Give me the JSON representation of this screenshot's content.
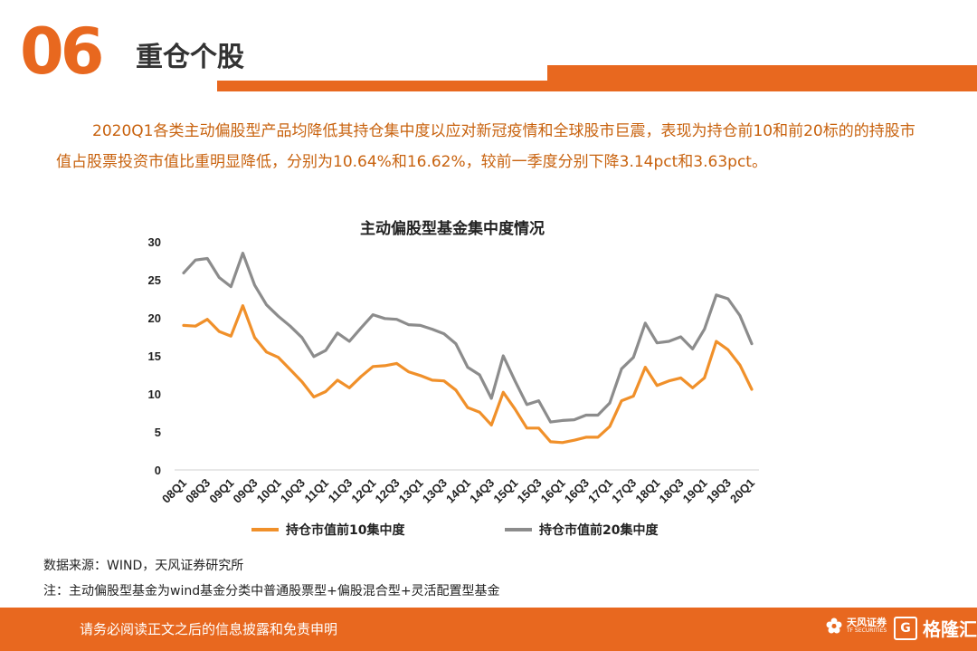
{
  "header": {
    "number": "06",
    "title": "重仓个股"
  },
  "paragraph": "2020Q1各类主动偏股型产品均降低其持仓集中度以应对新冠疫情和全球股市巨震，表现为持仓前10和前20标的的持股市值占股票投资市值比重明显降低，分别为10.64%和16.62%，较前一季度分别下降3.14pct和3.63pct。",
  "chart_data": {
    "type": "line",
    "title": "主动偏股型基金集中度情况",
    "ylim": [
      0,
      30
    ],
    "y_ticks": [
      "0",
      "5",
      "10",
      "15",
      "20",
      "25",
      "30"
    ],
    "tick_labels": [
      "08Q1",
      "08Q3",
      "09Q1",
      "09Q3",
      "10Q1",
      "10Q3",
      "11Q1",
      "11Q3",
      "12Q1",
      "12Q3",
      "13Q1",
      "13Q3",
      "14Q1",
      "14Q3",
      "15Q1",
      "15Q3",
      "16Q1",
      "16Q3",
      "17Q1",
      "17Q3",
      "18Q1",
      "18Q3",
      "19Q1",
      "19Q3",
      "20Q1"
    ],
    "x": [
      "08Q1",
      "08Q2",
      "08Q3",
      "08Q4",
      "09Q1",
      "09Q2",
      "09Q3",
      "09Q4",
      "10Q1",
      "10Q2",
      "10Q3",
      "10Q4",
      "11Q1",
      "11Q2",
      "11Q3",
      "11Q4",
      "12Q1",
      "12Q2",
      "12Q3",
      "12Q4",
      "13Q1",
      "13Q2",
      "13Q3",
      "13Q4",
      "14Q1",
      "14Q2",
      "14Q3",
      "14Q4",
      "15Q1",
      "15Q2",
      "15Q3",
      "15Q4",
      "16Q1",
      "16Q2",
      "16Q3",
      "16Q4",
      "17Q1",
      "17Q2",
      "17Q3",
      "17Q4",
      "18Q1",
      "18Q2",
      "18Q3",
      "18Q4",
      "19Q1",
      "19Q2",
      "19Q3",
      "19Q4",
      "20Q1"
    ],
    "series": [
      {
        "name": "持仓市值前10集中度",
        "color": "#f0902a",
        "values": [
          19.0,
          18.9,
          19.8,
          18.2,
          17.6,
          21.6,
          17.4,
          15.5,
          14.8,
          13.2,
          11.6,
          9.6,
          10.3,
          11.8,
          10.8,
          12.3,
          13.6,
          13.7,
          14.0,
          12.9,
          12.4,
          11.8,
          11.7,
          10.5,
          8.2,
          7.6,
          5.9,
          10.2,
          8.0,
          5.5,
          5.5,
          3.7,
          3.6,
          3.9,
          4.3,
          4.3,
          5.7,
          9.1,
          9.7,
          13.5,
          11.1,
          11.7,
          12.1,
          10.8,
          12.1,
          16.9,
          15.8,
          13.8,
          10.6
        ]
      },
      {
        "name": "持仓市值前20集中度",
        "color": "#8c8c8c",
        "values": [
          25.9,
          27.6,
          27.8,
          25.3,
          24.1,
          28.5,
          24.3,
          21.7,
          20.2,
          18.9,
          17.4,
          14.9,
          15.7,
          18.0,
          16.9,
          18.7,
          20.4,
          19.9,
          19.8,
          19.1,
          19.0,
          18.5,
          17.9,
          16.6,
          13.5,
          12.5,
          9.4,
          15.0,
          11.7,
          8.6,
          9.1,
          6.3,
          6.5,
          6.6,
          7.2,
          7.2,
          8.8,
          13.3,
          14.8,
          19.3,
          16.7,
          16.9,
          17.5,
          15.9,
          18.5,
          23.0,
          22.5,
          20.3,
          16.6
        ]
      }
    ]
  },
  "source_note": "数据来源：WIND，天风证券研究所",
  "footnote": "注：主动偏股型基金为wind基金分类中普通股票型+偏股混合型+灵活配置型基金",
  "footer": {
    "disclaimer": "请务必阅读正文之后的信息披露和免责申明",
    "brand1": "天风证券",
    "brand1_sub": "TF SECURITIES",
    "brand2": "格隆汇"
  },
  "colors": {
    "accent": "#e8681f",
    "paragraph": "#c8620e"
  }
}
